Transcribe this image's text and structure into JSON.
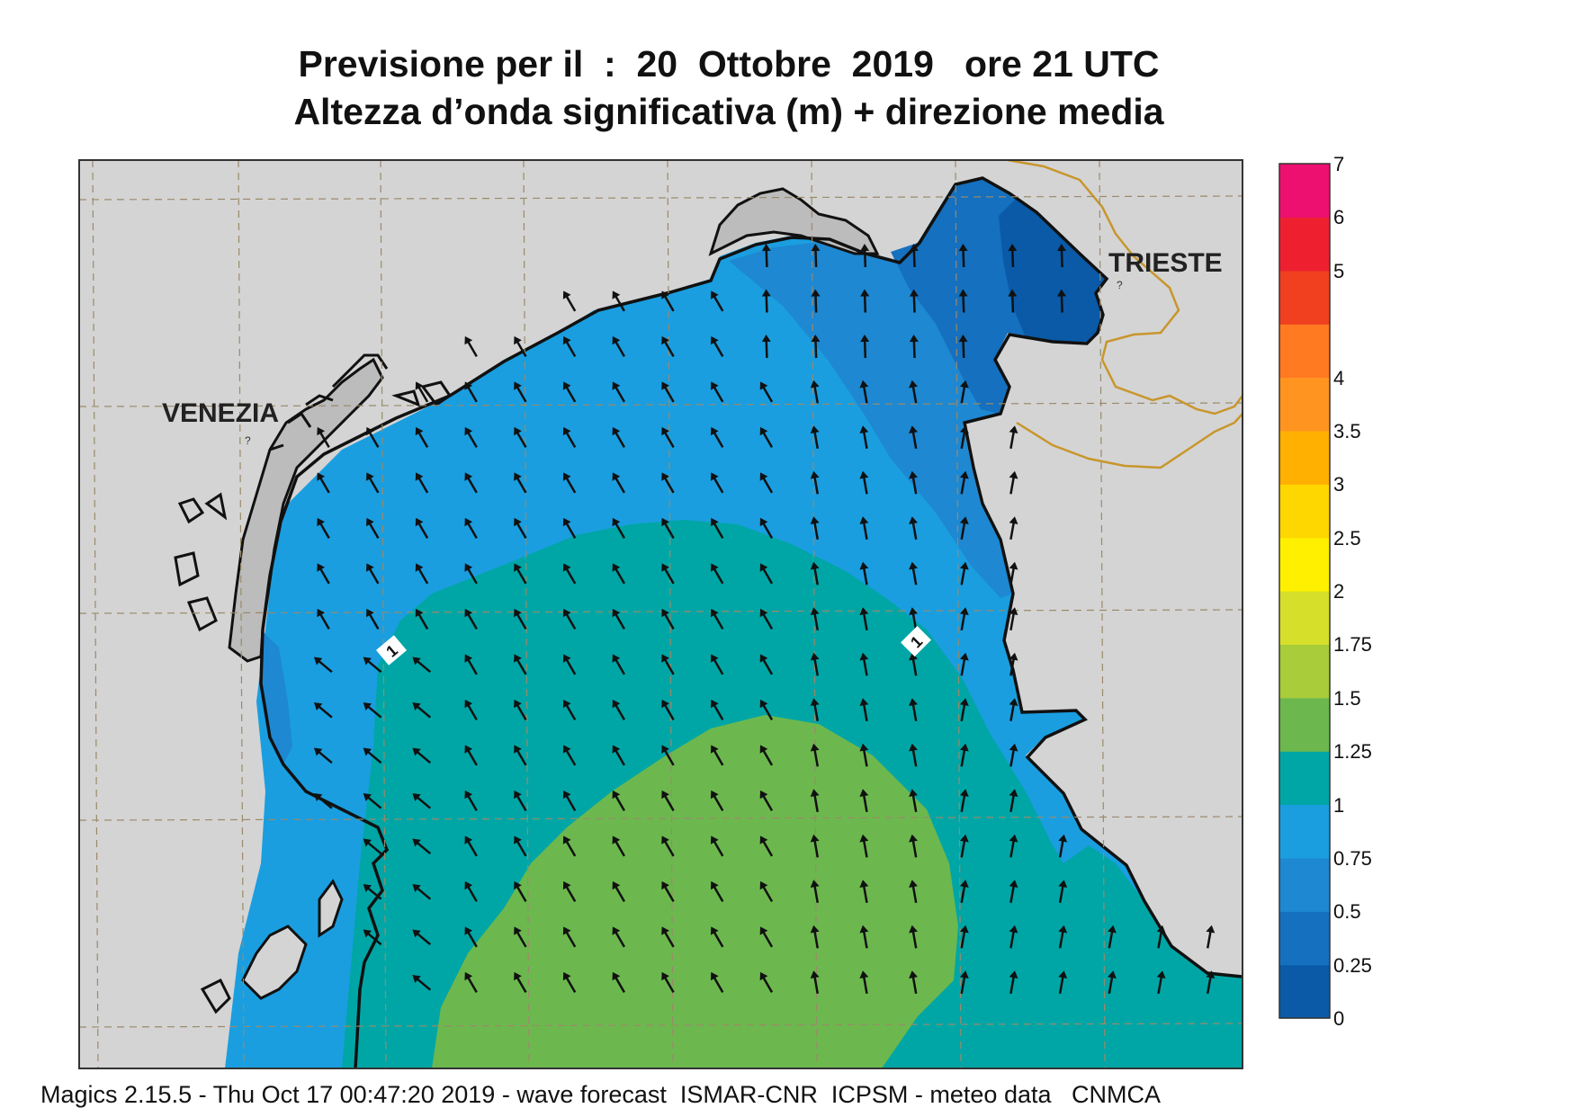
{
  "title_line1": "Previsione per il  :  20  Ottobre  2019   ore 21 UTC",
  "title_line2": "Altezza d’onda significativa (m) + direzione media",
  "cities": [
    {
      "name": "VENEZIA"
    },
    {
      "name": "TRIESTE"
    }
  ],
  "contour_labels": [
    "1",
    "1"
  ],
  "colorbar": {
    "levels": [
      "0",
      "0.25",
      "0.5",
      "0.75",
      "1",
      "1.25",
      "1.5",
      "1.75",
      "2",
      "2.5",
      "3",
      "3.5",
      "4",
      "4.5",
      "5",
      "6",
      "7"
    ],
    "visible_labels": [
      "0",
      "0.25",
      "0.5",
      "0.75",
      "1",
      "1.25",
      "1.5",
      "1.75",
      "2",
      "2.5",
      "3",
      "3.5",
      "4",
      "5",
      "6",
      "7"
    ],
    "colors": [
      "#0a5aa8",
      "#1570bf",
      "#1e88d2",
      "#1a9ee0",
      "#00a6a6",
      "#6cb84e",
      "#a8cc3a",
      "#d6e02a",
      "#fff000",
      "#ffd700",
      "#ffb000",
      "#ff9520",
      "#ff7a20",
      "#f04020",
      "#ee2030",
      "#ee1070"
    ]
  },
  "map_colors": {
    "land": "#d4d4d4",
    "lagoon": "#bcbcbc",
    "wave_0_25": "#0a5aa8",
    "wave_25_5": "#1570bf",
    "wave_5_75": "#1e88d2",
    "wave_75_1": "#1a9ee0",
    "wave_1_125": "#00a6a6",
    "wave_125_15": "#6cb84e",
    "border": "#c8962c"
  },
  "wave_direction": "north-northwest",
  "footer": "Magics 2.15.5 - Thu Oct 17 00:47:20 2019 - wave forecast  ISMAR-CNR  ICPSM - meteo data   CNMCA"
}
